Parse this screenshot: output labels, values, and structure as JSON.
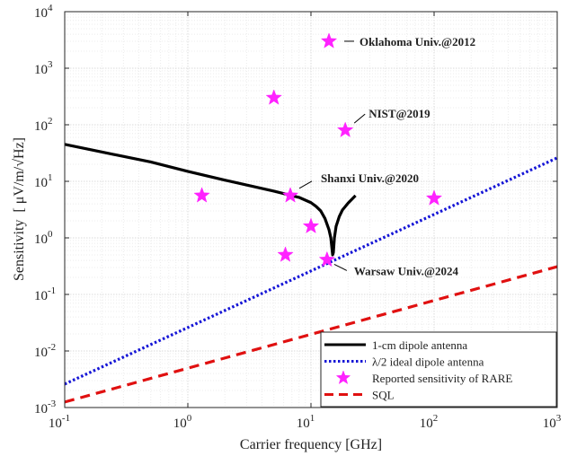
{
  "chart_data": {
    "type": "line",
    "xlabel": "Carrier frequency [GHz]",
    "ylabel": "Sensitivity",
    "ylabel_unit": "[ μV/m/√Hz]",
    "xscale": "log",
    "yscale": "log",
    "xlim": [
      0.1,
      1000
    ],
    "ylim": [
      0.001,
      10000
    ],
    "grid": true,
    "x_ticks": [
      {
        "base": "10",
        "exp": "-1",
        "value": 0.1
      },
      {
        "base": "10",
        "exp": "0",
        "value": 1
      },
      {
        "base": "10",
        "exp": "1",
        "value": 10
      },
      {
        "base": "10",
        "exp": "2",
        "value": 100
      },
      {
        "base": "10",
        "exp": "3",
        "value": 1000
      }
    ],
    "y_ticks": [
      {
        "base": "10",
        "exp": "-3",
        "value": 0.001
      },
      {
        "base": "10",
        "exp": "-2",
        "value": 0.01
      },
      {
        "base": "10",
        "exp": "-1",
        "value": 0.1
      },
      {
        "base": "10",
        "exp": "0",
        "value": 1
      },
      {
        "base": "10",
        "exp": "1",
        "value": 10
      },
      {
        "base": "10",
        "exp": "2",
        "value": 100
      },
      {
        "base": "10",
        "exp": "3",
        "value": 1000
      },
      {
        "base": "10",
        "exp": "4",
        "value": 10000
      }
    ],
    "series": [
      {
        "name": "1-cm dipole antenna",
        "color": "#000000",
        "style": "solid",
        "x": [
          0.1,
          0.2,
          0.5,
          1,
          2,
          5,
          8,
          10,
          11,
          12,
          13,
          14,
          14.5,
          15,
          15.2,
          15.5,
          16,
          17,
          18,
          20,
          23
        ],
        "y": [
          45,
          33,
          22,
          15,
          10.5,
          6.7,
          5.2,
          4.2,
          3.6,
          3.0,
          2.2,
          1.4,
          1.0,
          0.5,
          0.55,
          1.0,
          1.6,
          2.4,
          3.1,
          4.1,
          5.6
        ]
      },
      {
        "name": "λ/2 ideal dipole antenna",
        "color": "#1515d6",
        "style": "dotted",
        "x": [
          0.1,
          1000
        ],
        "y": [
          0.0026,
          26
        ]
      },
      {
        "name": "Reported sensitivity of RARE",
        "color": "#ff22ff",
        "style": "markers",
        "x": [
          1.3,
          5,
          6.2,
          6.8,
          10,
          13.5,
          14,
          19,
          100
        ],
        "y": [
          5.6,
          300,
          0.5,
          5.6,
          1.6,
          0.41,
          3000,
          80,
          5.0
        ]
      },
      {
        "name": "SQL",
        "color": "#e01010",
        "style": "dashed",
        "x": [
          0.1,
          1000
        ],
        "y": [
          0.00125,
          0.31
        ]
      }
    ],
    "annotations": [
      {
        "text": "Oklahoma Univ.@2012",
        "x": 14,
        "y": 3000
      },
      {
        "text": "NIST@2019",
        "x": 19,
        "y": 80
      },
      {
        "text": "Shanxi Univ.@2020",
        "x": 6.8,
        "y": 5.6
      },
      {
        "text": "Warsaw Univ.@2024",
        "x": 13.5,
        "y": 0.41
      }
    ],
    "legend_position": "bottom-right"
  }
}
